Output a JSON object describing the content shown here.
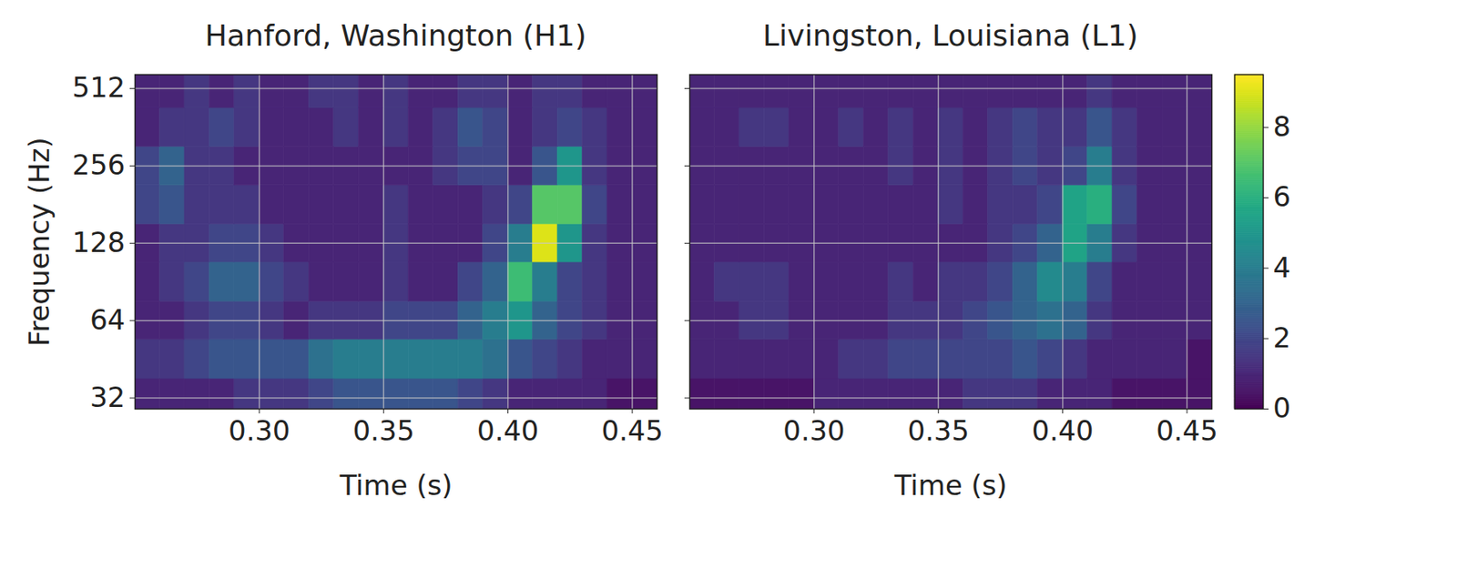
{
  "chart_data": [
    {
      "type": "heatmap",
      "title": "Hanford, Washington (H1)",
      "x_label": "Time (s)",
      "y_label": "Frequency (Hz)",
      "log": "y",
      "grid": true,
      "xlim": [
        0.25,
        0.46
      ],
      "ylim": [
        29,
        580
      ],
      "xticks": [
        {
          "value": 0.3,
          "label": "0.30"
        },
        {
          "value": 0.35,
          "label": "0.35"
        },
        {
          "value": 0.4,
          "label": "0.40"
        },
        {
          "value": 0.45,
          "label": "0.45"
        }
      ],
      "yticks": [
        32,
        64,
        128,
        256,
        512
      ],
      "x_bins": [
        0.25,
        0.26,
        0.27,
        0.28,
        0.29,
        0.3,
        0.31,
        0.32,
        0.33,
        0.34,
        0.35,
        0.36,
        0.37,
        0.38,
        0.39,
        0.4,
        0.41,
        0.42,
        0.43,
        0.44,
        0.45,
        0.46
      ],
      "y_bins": [
        29,
        38,
        54,
        76,
        108,
        152,
        215,
        304,
        430,
        580
      ],
      "cells": [
        [
          1,
          1,
          1,
          1,
          1.5,
          1.5,
          1.5,
          2,
          2.5,
          2.5,
          2.5,
          2.5,
          2.5,
          2,
          1.5,
          1,
          1,
          1,
          1,
          0.5,
          0.5
        ],
        [
          1.5,
          1.5,
          2,
          2.5,
          2.5,
          2.5,
          2.5,
          3.5,
          4,
          4,
          4,
          4,
          4,
          4,
          3.5,
          2.5,
          2,
          1.5,
          1,
          1,
          1
        ],
        [
          1,
          1,
          1.5,
          2,
          2,
          1.5,
          1,
          1.5,
          1.5,
          1.5,
          2,
          2,
          2,
          3,
          4,
          5,
          3,
          2,
          1.5,
          1,
          1
        ],
        [
          1,
          1.5,
          2,
          3,
          3,
          2,
          1.5,
          1,
          1,
          1,
          1.5,
          1,
          1,
          2,
          3,
          6.5,
          4,
          2,
          1.5,
          1,
          1
        ],
        [
          1,
          1.5,
          1.5,
          2,
          2,
          1.5,
          1,
          1,
          1,
          1,
          1.5,
          1,
          1,
          1,
          2,
          4,
          9,
          5,
          1.5,
          1,
          1
        ],
        [
          2,
          2.5,
          1.5,
          1.5,
          1.5,
          1,
          1,
          1,
          1,
          1,
          1.5,
          1,
          1,
          1,
          1.5,
          2,
          7,
          7,
          2,
          1,
          1
        ],
        [
          2,
          3,
          1.5,
          1.5,
          1,
          1,
          1,
          1,
          1,
          1,
          1,
          1,
          1.5,
          2,
          2,
          1,
          2.5,
          5,
          1.5,
          1,
          1
        ],
        [
          1,
          1.5,
          1.5,
          2,
          1.5,
          1,
          1,
          1,
          1.5,
          1,
          1.5,
          1,
          1.5,
          2.5,
          2,
          1,
          1.5,
          2,
          1.5,
          1,
          1
        ],
        [
          1,
          1,
          1.5,
          1,
          1.5,
          1,
          1,
          1.5,
          1.5,
          1,
          1.5,
          1,
          1,
          1.5,
          1.5,
          1,
          1.5,
          1.5,
          1,
          1,
          1
        ]
      ]
    },
    {
      "type": "heatmap",
      "title": "Livingston, Louisiana (L1)",
      "x_label": "Time (s)",
      "log": "y",
      "grid": true,
      "tick_labels": "x",
      "xlim": [
        0.25,
        0.46
      ],
      "ylim": [
        29,
        580
      ],
      "xticks": [
        {
          "value": 0.3,
          "label": "0.30"
        },
        {
          "value": 0.35,
          "label": "0.35"
        },
        {
          "value": 0.4,
          "label": "0.40"
        },
        {
          "value": 0.45,
          "label": "0.45"
        }
      ],
      "yticks": [
        32,
        64,
        128,
        256,
        512
      ],
      "x_bins": [
        0.25,
        0.26,
        0.27,
        0.28,
        0.29,
        0.3,
        0.31,
        0.32,
        0.33,
        0.34,
        0.35,
        0.36,
        0.37,
        0.38,
        0.39,
        0.4,
        0.41,
        0.42,
        0.43,
        0.44,
        0.45,
        0.46
      ],
      "y_bins": [
        29,
        38,
        54,
        76,
        108,
        152,
        215,
        304,
        430,
        580
      ],
      "cells": [
        [
          0.5,
          0.5,
          0.5,
          0.5,
          0.5,
          1,
          1,
          1,
          1,
          1,
          1,
          1.5,
          1.5,
          1.5,
          1,
          1,
          1,
          0.5,
          0.5,
          0.5,
          0.5
        ],
        [
          1,
          1,
          1,
          1,
          1,
          1,
          1.5,
          1.5,
          2,
          2,
          2,
          2,
          2,
          2.5,
          2,
          1.5,
          1,
          1,
          1,
          1,
          0.5
        ],
        [
          1,
          1,
          1.5,
          1.5,
          1,
          1,
          1,
          1,
          1.5,
          1.5,
          1.5,
          2,
          2.5,
          3,
          3.5,
          3,
          1.5,
          1,
          1,
          1,
          1
        ],
        [
          1,
          1.5,
          1.5,
          1.5,
          1,
          1,
          1,
          1,
          1.5,
          1,
          1.5,
          1.5,
          2,
          3,
          4.5,
          4,
          2,
          1,
          1,
          1,
          1
        ],
        [
          1,
          1,
          1,
          1,
          1,
          1,
          1,
          1,
          1,
          1,
          1,
          1,
          1.5,
          2,
          3,
          5.5,
          4,
          1.5,
          1,
          1,
          1
        ],
        [
          1,
          1,
          1,
          1,
          1,
          1,
          1,
          1,
          1,
          1,
          1.5,
          1,
          1.5,
          1.5,
          2,
          5.5,
          6,
          2,
          1,
          1,
          1
        ],
        [
          1,
          1,
          1,
          1,
          1,
          1,
          1,
          1,
          1.5,
          1,
          1.5,
          1,
          1.5,
          2,
          1.5,
          2,
          4,
          1.5,
          1,
          1,
          1
        ],
        [
          1,
          1,
          1.5,
          1.5,
          1,
          1,
          1.5,
          1,
          1.5,
          1,
          1.5,
          1,
          1.5,
          2,
          1.5,
          1.5,
          2.5,
          1.5,
          1,
          1,
          1
        ],
        [
          1,
          1,
          1,
          1,
          1,
          1,
          1,
          1,
          1,
          1,
          1,
          1,
          1,
          1,
          1,
          1,
          1.5,
          1,
          1,
          1,
          1
        ]
      ],
      "colorbar": {
        "range": [
          0,
          9.5
        ],
        "ticks": [
          0,
          2,
          4,
          6,
          8
        ]
      }
    }
  ]
}
